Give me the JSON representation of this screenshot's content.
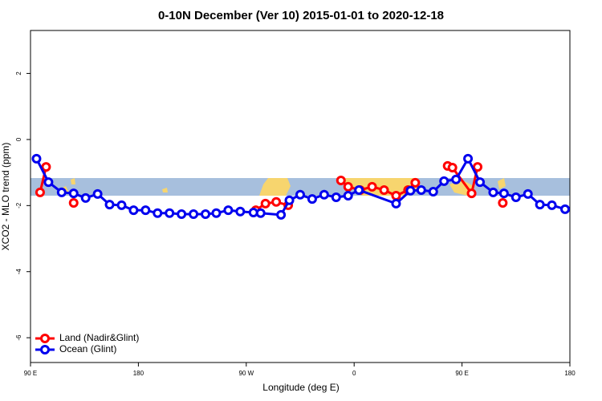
{
  "chart_data": {
    "type": "line",
    "title": "0-10N December (Ver 10)   2015-01-01 to 2020-12-18",
    "xlabel": "Longitude (deg E)",
    "ylabel": "XCO2 - MLO trend (ppm)",
    "xlim": [
      90,
      540
    ],
    "ylim": [
      -6.75,
      3.3
    ],
    "xticks": [
      {
        "value": 90,
        "label": "90 E"
      },
      180,
      {
        "value": 270,
        "label": "90 W"
      },
      {
        "value": 360,
        "label": "0"
      },
      {
        "value": 450,
        "label": "90 E"
      },
      {
        "value": 540,
        "label": "180"
      }
    ],
    "yticks": [
      -6,
      -4,
      -2,
      0,
      2
    ],
    "legend": "bottom-left",
    "series": [
      {
        "name": "Land (Nadir&Glint)",
        "color": "#ff0000",
        "x": [
          98,
          103,
          null,
          126,
          null,
          278,
          286,
          295,
          305,
          null,
          349,
          355,
          365,
          375,
          385,
          395,
          405,
          411,
          null,
          438,
          442,
          458,
          463,
          null,
          484
        ],
        "values": [
          -1.6,
          -0.83,
          null,
          -1.92,
          null,
          -2.14,
          -1.94,
          -1.89,
          -1.99,
          null,
          -1.24,
          -1.43,
          -1.53,
          -1.43,
          -1.53,
          -1.7,
          -1.53,
          -1.31,
          null,
          -0.8,
          -0.85,
          -1.63,
          -0.83,
          null,
          -1.92
        ]
      },
      {
        "name": "Ocean (Glint)",
        "color": "#0000ee",
        "x": [
          95,
          105,
          116,
          126,
          136,
          146,
          156,
          166,
          176,
          186,
          196,
          206,
          216,
          226,
          236,
          245,
          255,
          265,
          276,
          282,
          299,
          306,
          315,
          325,
          335,
          345,
          355,
          364,
          395,
          407,
          416,
          426,
          435,
          445,
          455,
          465,
          476,
          485,
          495,
          505,
          515,
          525,
          536
        ],
        "values": [
          -0.58,
          -1.29,
          -1.6,
          -1.63,
          -1.77,
          -1.65,
          -1.97,
          -1.99,
          -2.14,
          -2.14,
          -2.23,
          -2.23,
          -2.26,
          -2.26,
          -2.26,
          -2.23,
          -2.14,
          -2.18,
          -2.21,
          -2.23,
          -2.28,
          -1.84,
          -1.67,
          -1.8,
          -1.67,
          -1.75,
          -1.7,
          -1.53,
          -1.94,
          -1.55,
          -1.53,
          -1.58,
          -1.26,
          -1.21,
          -0.58,
          -1.29,
          -1.6,
          -1.63,
          -1.75,
          -1.65,
          -1.97,
          -1.99,
          -2.11
        ]
      }
    ]
  }
}
